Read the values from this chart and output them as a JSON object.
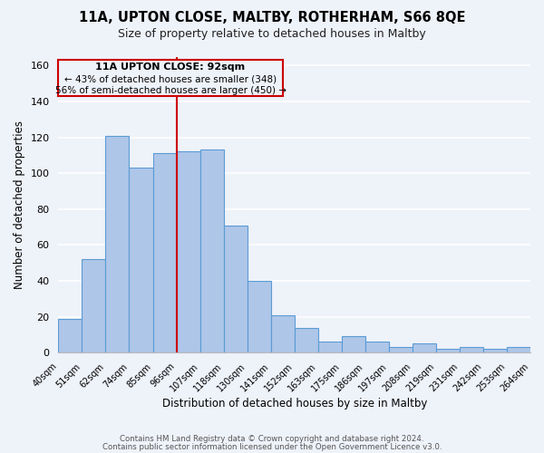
{
  "title": "11A, UPTON CLOSE, MALTBY, ROTHERHAM, S66 8QE",
  "subtitle": "Size of property relative to detached houses in Maltby",
  "xlabel": "Distribution of detached houses by size in Maltby",
  "ylabel": "Number of detached properties",
  "bin_edges_labels": [
    "40sqm",
    "51sqm",
    "62sqm",
    "74sqm",
    "85sqm",
    "96sqm",
    "107sqm",
    "118sqm",
    "130sqm",
    "141sqm",
    "152sqm",
    "163sqm",
    "175sqm",
    "186sqm",
    "197sqm",
    "208sqm",
    "219sqm",
    "231sqm",
    "242sqm",
    "253sqm",
    "264sqm"
  ],
  "bar_heights": [
    19,
    52,
    121,
    103,
    111,
    112,
    113,
    71,
    40,
    21,
    14,
    6,
    9,
    6,
    3,
    5,
    2,
    3,
    2,
    3
  ],
  "bar_color": "#aec6e8",
  "bar_edge_color": "#5b9bd5",
  "marker_bin_index": 5,
  "marker_label": "11A UPTON CLOSE: 92sqm",
  "marker_line_color": "#cc0000",
  "annotation_line1": "← 43% of detached houses are smaller (348)",
  "annotation_line2": "56% of semi-detached houses are larger (450) →",
  "annotation_box_edgecolor": "#cc0000",
  "ylim": [
    0,
    165
  ],
  "yticks": [
    0,
    20,
    40,
    60,
    80,
    100,
    120,
    140,
    160
  ],
  "footer1": "Contains HM Land Registry data © Crown copyright and database right 2024.",
  "footer2": "Contains public sector information licensed under the Open Government Licence v3.0.",
  "background_color": "#eef2f9",
  "grid_color": "#ffffff"
}
